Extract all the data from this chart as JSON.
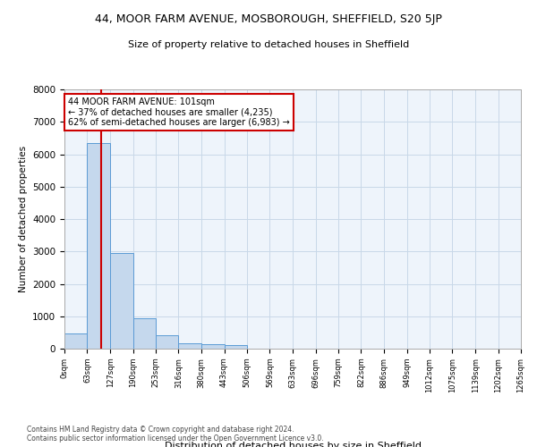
{
  "title1": "44, MOOR FARM AVENUE, MOSBOROUGH, SHEFFIELD, S20 5JP",
  "title2": "Size of property relative to detached houses in Sheffield",
  "xlabel": "Distribution of detached houses by size in Sheffield",
  "ylabel": "Number of detached properties",
  "footer1": "Contains HM Land Registry data © Crown copyright and database right 2024.",
  "footer2": "Contains public sector information licensed under the Open Government Licence v3.0.",
  "annotation_line1": "44 MOOR FARM AVENUE: 101sqm",
  "annotation_line2": "← 37% of detached houses are smaller (4,235)",
  "annotation_line3": "62% of semi-detached houses are larger (6,983) →",
  "property_size": 101,
  "bin_edges": [
    0,
    63,
    127,
    190,
    253,
    316,
    380,
    443,
    506,
    569,
    633,
    696,
    759,
    822,
    886,
    949,
    1012,
    1075,
    1139,
    1202,
    1265
  ],
  "bin_heights": [
    470,
    6350,
    2950,
    930,
    420,
    170,
    130,
    100,
    0,
    0,
    0,
    0,
    0,
    0,
    0,
    0,
    0,
    0,
    0,
    0
  ],
  "bar_color": "#c5d8ed",
  "bar_edge_color": "#5b9bd5",
  "bar_edge_width": 0.7,
  "red_line_color": "#cc0000",
  "annotation_box_color": "#cc0000",
  "grid_color": "#c8d8e8",
  "background_color": "#eef4fb",
  "ylim": [
    0,
    8000
  ],
  "yticks": [
    0,
    1000,
    2000,
    3000,
    4000,
    5000,
    6000,
    7000,
    8000
  ]
}
